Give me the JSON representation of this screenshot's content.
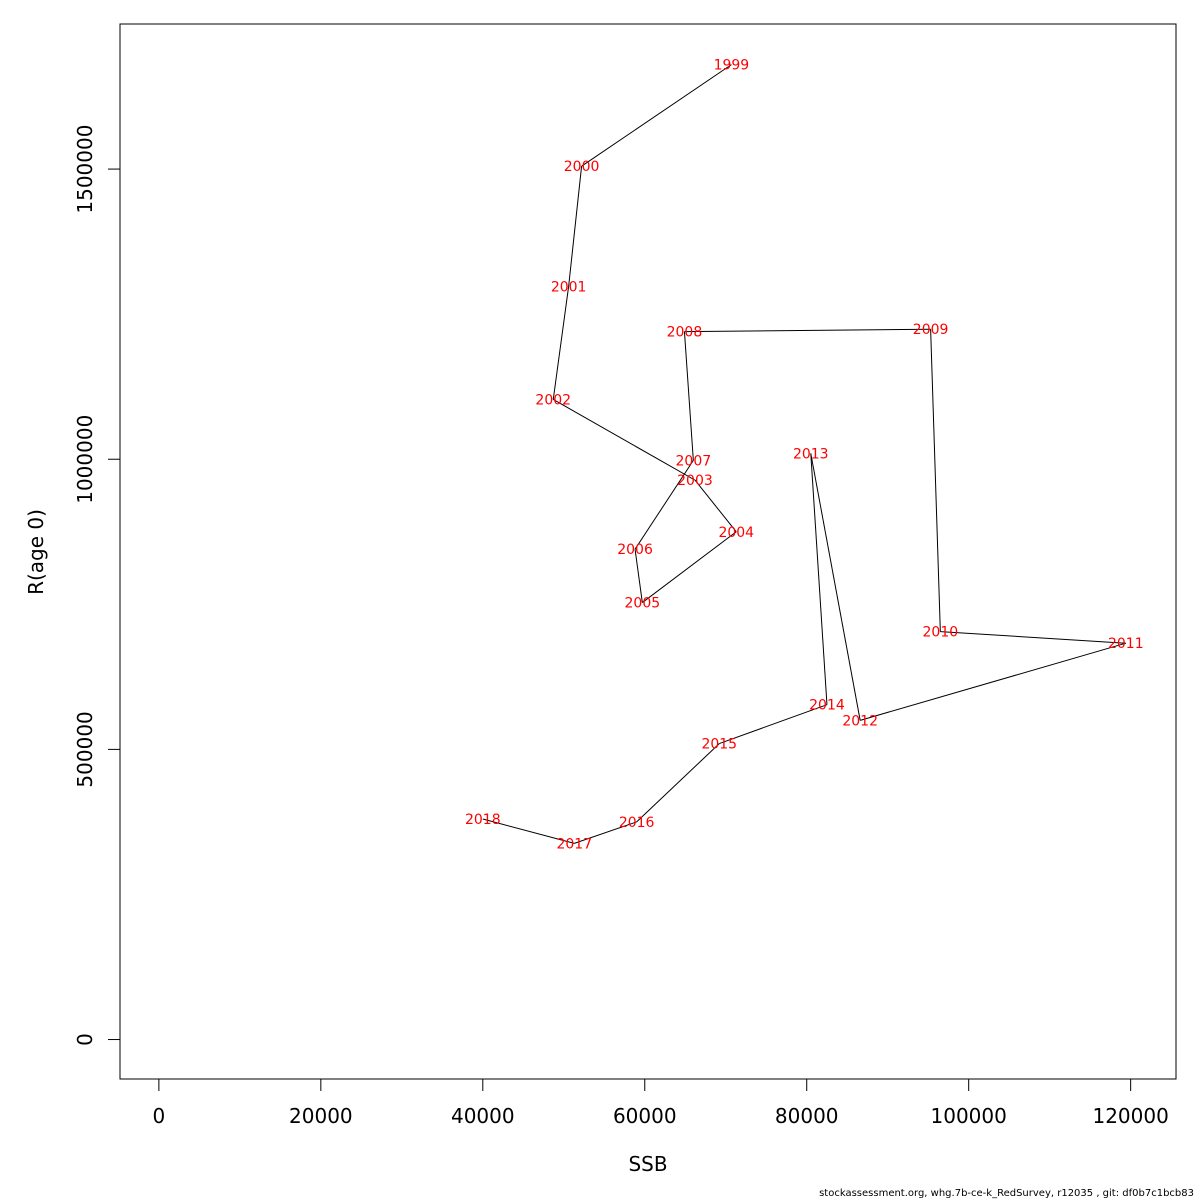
{
  "chart_data": {
    "type": "line",
    "xlabel": "SSB",
    "ylabel": "R(age 0)",
    "xlim": [
      -4800,
      125600
    ],
    "ylim": [
      -68000,
      1750000
    ],
    "x_ticks": [
      0,
      20000,
      40000,
      60000,
      80000,
      100000,
      120000
    ],
    "x_tick_labels": [
      "0",
      "20000",
      "40000",
      "60000",
      "80000",
      "100000",
      "120000"
    ],
    "y_ticks": [
      0,
      500000,
      1000000,
      1500000
    ],
    "y_tick_labels": [
      "0",
      "500000",
      "1000000",
      "1500000"
    ],
    "grid": false,
    "line_color": "#000000",
    "label_color": "#ff0000",
    "points": [
      {
        "year": "1999",
        "ssb": 70700,
        "r": 1680000
      },
      {
        "year": "2000",
        "ssb": 52200,
        "r": 1505000
      },
      {
        "year": "2001",
        "ssb": 50600,
        "r": 1298000
      },
      {
        "year": "2002",
        "ssb": 48700,
        "r": 1103000
      },
      {
        "year": "2003",
        "ssb": 66200,
        "r": 964000
      },
      {
        "year": "2004",
        "ssb": 71300,
        "r": 875000
      },
      {
        "year": "2005",
        "ssb": 59700,
        "r": 753000
      },
      {
        "year": "2006",
        "ssb": 58800,
        "r": 845000
      },
      {
        "year": "2007",
        "ssb": 66000,
        "r": 998000
      },
      {
        "year": "2008",
        "ssb": 64900,
        "r": 1220000
      },
      {
        "year": "2009",
        "ssb": 95300,
        "r": 1224000
      },
      {
        "year": "2010",
        "ssb": 96500,
        "r": 703000
      },
      {
        "year": "2011",
        "ssb": 119400,
        "r": 683000
      },
      {
        "year": "2012",
        "ssb": 86600,
        "r": 550000
      },
      {
        "year": "2013",
        "ssb": 80500,
        "r": 1010000
      },
      {
        "year": "2014",
        "ssb": 82500,
        "r": 577000
      },
      {
        "year": "2015",
        "ssb": 69200,
        "r": 510000
      },
      {
        "year": "2016",
        "ssb": 59000,
        "r": 375000
      },
      {
        "year": "2017",
        "ssb": 51300,
        "r": 338000
      },
      {
        "year": "2018",
        "ssb": 40000,
        "r": 380000
      }
    ]
  },
  "footer_text": "stockassessment.org, whg.7b-ce-k_RedSurvey, r12035 , git: df0b7c1bcb83"
}
